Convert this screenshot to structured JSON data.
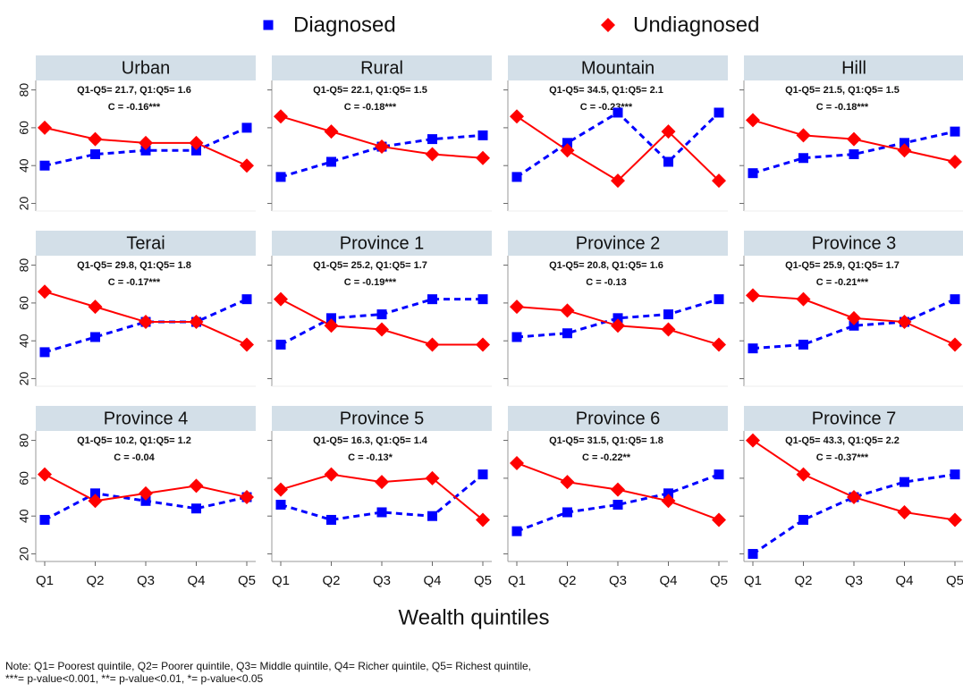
{
  "chart_data": {
    "type": "line",
    "series": [
      {
        "name": "Diagnosed",
        "color": "#0000ff",
        "marker": "square",
        "dash": true
      },
      {
        "name": "Undiagnosed",
        "color": "#ff0000",
        "marker": "diamond",
        "dash": false
      }
    ],
    "categories": [
      "Q1",
      "Q2",
      "Q3",
      "Q4",
      "Q5"
    ],
    "x_label": "Wealth quintiles",
    "ylim": [
      16,
      85
    ],
    "yticks": [
      20,
      40,
      60,
      80
    ],
    "panels": [
      {
        "title": "Urban",
        "stats": "Q1-Q5= 21.7, Q1:Q5= 1.6",
        "ci": "C = -0.16***",
        "values": [
          [
            40,
            46,
            48,
            48,
            60
          ],
          [
            60,
            54,
            52,
            52,
            40
          ]
        ]
      },
      {
        "title": "Rural",
        "stats": "Q1-Q5= 22.1, Q1:Q5= 1.5",
        "ci": "C = -0.18***",
        "values": [
          [
            34,
            42,
            50,
            54,
            56
          ],
          [
            66,
            58,
            50,
            46,
            44
          ]
        ]
      },
      {
        "title": "Mountain",
        "stats": "Q1-Q5= 34.5, Q1:Q5= 2.1",
        "ci": "C = -0.23***",
        "values": [
          [
            34,
            52,
            68,
            42,
            68
          ],
          [
            66,
            48,
            32,
            58,
            32
          ]
        ]
      },
      {
        "title": "Hill",
        "stats": "Q1-Q5= 21.5, Q1:Q5= 1.5",
        "ci": "C = -0.18***",
        "values": [
          [
            36,
            44,
            46,
            52,
            58
          ],
          [
            64,
            56,
            54,
            48,
            42
          ]
        ]
      },
      {
        "title": "Terai",
        "stats": "Q1-Q5= 29.8, Q1:Q5= 1.8",
        "ci": "C = -0.17***",
        "values": [
          [
            34,
            42,
            50,
            50,
            62
          ],
          [
            66,
            58,
            50,
            50,
            38
          ]
        ]
      },
      {
        "title": "Province 1",
        "stats": "Q1-Q5= 25.2, Q1:Q5= 1.7",
        "ci": "C = -0.19***",
        "values": [
          [
            38,
            52,
            54,
            62,
            62
          ],
          [
            62,
            48,
            46,
            38,
            38
          ]
        ]
      },
      {
        "title": "Province 2",
        "stats": "Q1-Q5= 20.8, Q1:Q5= 1.6",
        "ci": "C = -0.13",
        "values": [
          [
            42,
            44,
            52,
            54,
            62
          ],
          [
            58,
            56,
            48,
            46,
            38
          ]
        ]
      },
      {
        "title": "Province 3",
        "stats": "Q1-Q5= 25.9, Q1:Q5= 1.7",
        "ci": "C = -0.21***",
        "values": [
          [
            36,
            38,
            48,
            50,
            62
          ],
          [
            64,
            62,
            52,
            50,
            38
          ]
        ]
      },
      {
        "title": "Province 4",
        "stats": "Q1-Q5= 10.2, Q1:Q5= 1.2",
        "ci": "C = -0.04",
        "values": [
          [
            38,
            52,
            48,
            44,
            50
          ],
          [
            62,
            48,
            52,
            56,
            50
          ]
        ]
      },
      {
        "title": "Province 5",
        "stats": "Q1-Q5= 16.3, Q1:Q5= 1.4",
        "ci": "C = -0.13*",
        "values": [
          [
            46,
            38,
            42,
            40,
            62
          ],
          [
            54,
            62,
            58,
            60,
            38
          ]
        ]
      },
      {
        "title": "Province 6",
        "stats": "Q1-Q5= 31.5, Q1:Q5= 1.8",
        "ci": "C = -0.22**",
        "values": [
          [
            32,
            42,
            46,
            52,
            62
          ],
          [
            68,
            58,
            54,
            48,
            38
          ]
        ]
      },
      {
        "title": "Province 7",
        "stats": "Q1-Q5= 43.3, Q1:Q5= 2.2",
        "ci": "C = -0.37***",
        "values": [
          [
            20,
            38,
            50,
            58,
            62
          ],
          [
            80,
            62,
            50,
            42,
            38
          ]
        ]
      }
    ]
  },
  "note": [
    "Note: Q1= Poorest quintile, Q2= Poorer quintile, Q3= Middle quintile, Q4= Richer quintile, Q5= Richest quintile,",
    "***= p-value<0.001, **= p-value<0.01, *= p-value<0.05"
  ]
}
